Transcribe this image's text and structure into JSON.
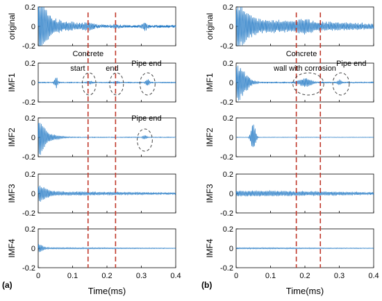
{
  "colors": {
    "signal": "#1f77c4",
    "marker_line": "#c0392b",
    "axis": "#000000",
    "annotation_circle": "#444444"
  },
  "chart_data": [
    {
      "type": "line",
      "panel_label": "(a)",
      "xlabel": "Time(ms)",
      "xlim": [
        0,
        0.4
      ],
      "xticks": [
        "0",
        "0.1",
        "0.2",
        "0.3",
        "0.4"
      ],
      "markers_ms": [
        0.145,
        0.225
      ],
      "subplots": [
        {
          "name": "original",
          "ylim": [
            -0.2,
            0.2
          ],
          "yticks": [
            "0.2",
            "0",
            "-0.2"
          ],
          "bursts": [
            [
              0.0,
              0.2,
              0.03
            ],
            [
              0.0,
              0.08,
              0.12
            ],
            [
              0.145,
              0.025,
              0.02
            ],
            [
              0.225,
              0.02,
              0.015
            ],
            [
              0.31,
              0.045,
              0.01
            ]
          ],
          "noise": 0.012
        },
        {
          "name": "IMF1",
          "ylim": [
            -0.2,
            0.2
          ],
          "yticks": [
            "0.2",
            "0",
            "-0.2"
          ],
          "bursts": [
            [
              0.052,
              0.06,
              0.006
            ],
            [
              0.15,
              0.02,
              0.01
            ],
            [
              0.228,
              0.015,
              0.01
            ],
            [
              0.318,
              0.04,
              0.007
            ]
          ],
          "noise": 0.003
        },
        {
          "name": "IMF2",
          "ylim": [
            -0.2,
            0.2
          ],
          "yticks": [
            "0.2",
            "0",
            "-0.2"
          ],
          "bursts": [
            [
              0.0,
              0.16,
              0.02
            ],
            [
              0.0,
              0.05,
              0.06
            ],
            [
              0.31,
              0.02,
              0.008
            ]
          ],
          "noise": 0.002
        },
        {
          "name": "IMF3",
          "ylim": [
            -0.2,
            0.2
          ],
          "yticks": [
            "0.2",
            "0",
            "-0.2"
          ],
          "bursts": [
            [
              0.0,
              0.07,
              0.03
            ],
            [
              0.0,
              0.02,
              0.4
            ]
          ],
          "noise": 0.004
        },
        {
          "name": "IMF4",
          "ylim": [
            -0.2,
            0.2
          ],
          "yticks": [
            "0.2",
            "0",
            "-0.2"
          ],
          "bursts": [
            [
              0.0,
              0.04,
              0.015
            ],
            [
              0.0,
              0.008,
              0.4
            ]
          ],
          "noise": 0.001
        }
      ],
      "annotations": [
        {
          "text": "Concrete",
          "x": 0.145,
          "subplot": 1,
          "y": 0.27
        },
        {
          "text": "start",
          "x": 0.115,
          "subplot": 1,
          "y": 0.12
        },
        {
          "text": "end",
          "x": 0.215,
          "subplot": 1,
          "y": 0.12
        },
        {
          "text": "Pipe end",
          "x": 0.315,
          "subplot": 1,
          "y": 0.17
        },
        {
          "text": "Pipe end",
          "x": 0.315,
          "subplot": 2,
          "y": 0.17
        }
      ],
      "circles": [
        {
          "subplot": 1,
          "x": 0.148,
          "rx": 0.02
        },
        {
          "subplot": 1,
          "x": 0.228,
          "rx": 0.02
        },
        {
          "subplot": 1,
          "x": 0.318,
          "rx": 0.022
        },
        {
          "subplot": 2,
          "x": 0.31,
          "rx": 0.022
        }
      ]
    },
    {
      "type": "line",
      "panel_label": "(b)",
      "xlabel": "Time(ms)",
      "xlim": [
        0,
        0.4
      ],
      "xticks": [
        "0",
        "0.1",
        "0.2",
        "0.3",
        "0.4"
      ],
      "markers_ms": [
        0.175,
        0.245
      ],
      "subplots": [
        {
          "name": "original",
          "ylim": [
            -0.2,
            0.2
          ],
          "yticks": [
            "0.2",
            "0",
            "-0.2"
          ],
          "bursts": [
            [
              0.0,
              0.18,
              0.04
            ],
            [
              0.0,
              0.07,
              0.4
            ],
            [
              0.2,
              0.03,
              0.02
            ]
          ],
          "noise": 0.01
        },
        {
          "name": "IMF1",
          "ylim": [
            -0.2,
            0.2
          ],
          "yticks": [
            "0.2",
            "0",
            "-0.2"
          ],
          "bursts": [
            [
              0.0,
              0.2,
              0.035
            ],
            [
              0.2,
              0.045,
              0.025
            ],
            [
              0.3,
              0.03,
              0.008
            ]
          ],
          "noise": 0.004
        },
        {
          "name": "IMF2",
          "ylim": [
            -0.2,
            0.2
          ],
          "yticks": [
            "0.2",
            "0",
            "-0.2"
          ],
          "bursts": [
            [
              0.05,
              0.16,
              0.008
            ]
          ],
          "noise": 0.001
        },
        {
          "name": "IMF3",
          "ylim": [
            -0.2,
            0.2
          ],
          "yticks": [
            "0.2",
            "0",
            "-0.2"
          ],
          "bursts": [
            [
              0.0,
              0.03,
              0.4
            ]
          ],
          "noise": 0.004
        },
        {
          "name": "IMF4",
          "ylim": [
            -0.2,
            0.2
          ],
          "yticks": [
            "0.2",
            "0",
            "-0.2"
          ],
          "bursts": [
            [
              0.0,
              0.007,
              0.4
            ]
          ],
          "noise": 0.001
        }
      ],
      "annotations": [
        {
          "text": "Concrete",
          "x": 0.19,
          "subplot": 1,
          "y": 0.27
        },
        {
          "text": "wall with corrosion",
          "x": 0.2,
          "subplot": 1,
          "y": 0.12
        },
        {
          "text": "Pipe end",
          "x": 0.335,
          "subplot": 1,
          "y": 0.17
        }
      ],
      "circles": [
        {
          "subplot": 1,
          "x": 0.21,
          "rx": 0.045
        },
        {
          "subplot": 1,
          "x": 0.305,
          "rx": 0.024
        }
      ]
    }
  ]
}
